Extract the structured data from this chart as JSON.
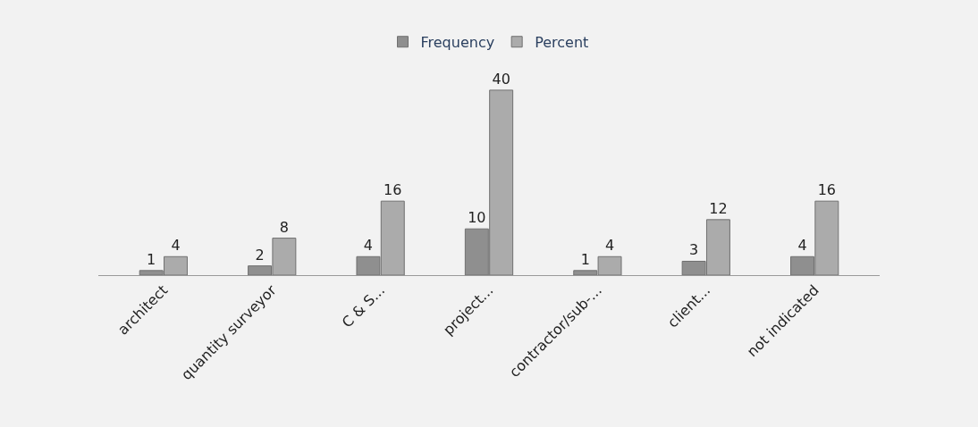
{
  "chart_data": {
    "type": "bar",
    "categories": [
      "architect",
      "quantity surveyor",
      "C & S...",
      "project...",
      "contractor/sub-...",
      "client...",
      "not indicated"
    ],
    "series": [
      {
        "name": "Frequency",
        "color": "#8f8f8f",
        "values": [
          1,
          2,
          4,
          10,
          1,
          3,
          4
        ]
      },
      {
        "name": "Percent",
        "color": "#ababab",
        "values": [
          4,
          8,
          16,
          40,
          4,
          12,
          16
        ]
      }
    ],
    "data_labels": true,
    "legend": "top"
  }
}
